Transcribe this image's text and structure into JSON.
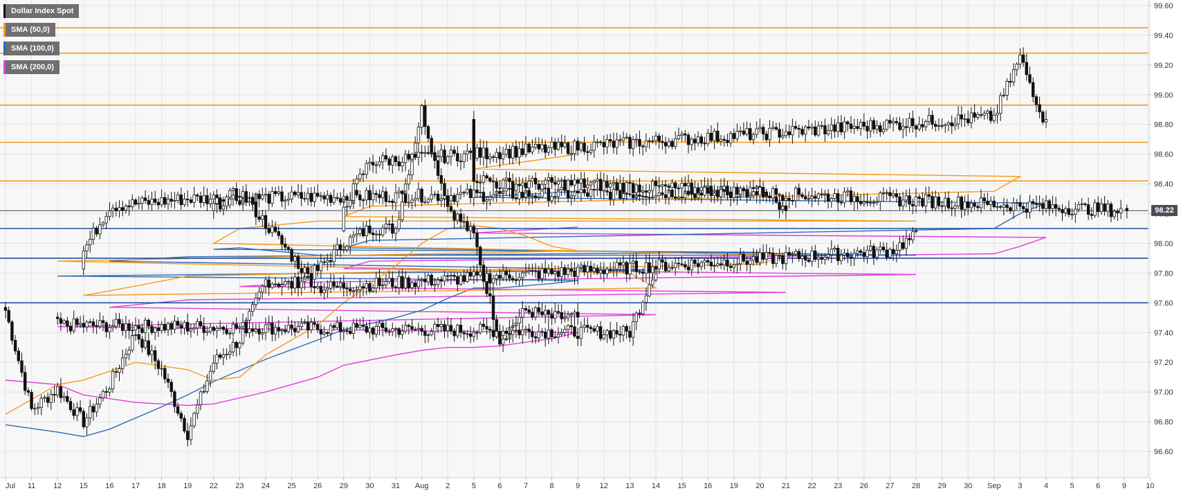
{
  "chart_data": {
    "type": "candlestick",
    "title": "Dollar Index Spot",
    "last_price_label": "98.22",
    "last_price": 98.22,
    "ylim": [
      96.45,
      99.65
    ],
    "y_ticks": [
      "99.60",
      "99.40",
      "99.20",
      "99.00",
      "98.80",
      "98.60",
      "98.40",
      "98.20",
      "98.00",
      "97.80",
      "97.60",
      "97.40",
      "97.20",
      "97.00",
      "96.80",
      "96.60"
    ],
    "x_labels": [
      "Jul",
      "11",
      "12",
      "15",
      "16",
      "17",
      "18",
      "19",
      "22",
      "23",
      "24",
      "25",
      "26",
      "29",
      "30",
      "31",
      "Aug",
      "2",
      "5",
      "6",
      "7",
      "8",
      "9",
      "12",
      "13",
      "14",
      "15",
      "16",
      "19",
      "20",
      "21",
      "22",
      "23",
      "26",
      "27",
      "28",
      "29",
      "30",
      "Sep",
      "3",
      "4",
      "5",
      "6",
      "9",
      "10"
    ],
    "grid": true,
    "legend": [
      {
        "label": "Dollar Index Spot",
        "color": "#111111"
      },
      {
        "label": "SMA (50,0)",
        "color": "#f59a1b"
      },
      {
        "label": "SMA (100,0)",
        "color": "#2e6ab5"
      },
      {
        "label": "SMA (200,0)",
        "color": "#e13ce0"
      }
    ],
    "resistance_levels": [
      99.45,
      99.28,
      98.93,
      98.68,
      98.42
    ],
    "support_levels": [
      98.1,
      97.9,
      97.6
    ],
    "resistance_color": "#f59a1b",
    "support_color": "#1f4fa6",
    "last_price_line_color": "#4a4f57",
    "sma50_color": "#f59a1b",
    "sma100_color": "#2e6ab5",
    "sma200_color": "#e13ce0",
    "candle_anchors": [
      [
        "Jul",
        97.55
      ],
      [
        "11",
        96.88
      ],
      [
        "12",
        97.02
      ],
      [
        "15",
        96.8
      ],
      [
        "16",
        97.05
      ],
      [
        "17",
        97.4
      ],
      [
        "18",
        97.15
      ],
      [
        "19",
        96.72
      ],
      [
        "22",
        97.2
      ],
      [
        "23",
        97.35
      ],
      [
        "24",
        97.75
      ],
      [
        "25",
        97.72
      ],
      [
        "26",
        97.82
      ],
      [
        "29",
        98.0
      ],
      [
        "30",
        98.1
      ],
      [
        "31",
        98.1
      ],
      [
        "Aug",
        98.9
      ],
      [
        "2",
        98.25
      ],
      [
        "5",
        98.05
      ],
      [
        "6",
        97.35
      ],
      [
        "7",
        97.55
      ],
      [
        "8",
        97.5
      ],
      [
        "9",
        97.5
      ],
      [
        "12",
        97.45
      ],
      [
        "13",
        97.4
      ],
      [
        "14",
        97.85
      ],
      [
        "15",
        97.95
      ],
      [
        "16",
        98.25
      ],
      [
        "19",
        98.3
      ],
      [
        "20",
        98.35
      ],
      [
        "21",
        98.2
      ],
      [
        "22",
        98.25
      ],
      [
        "23",
        98.35
      ],
      [
        "26",
        97.7
      ],
      [
        "27",
        97.95
      ],
      [
        "28",
        98.05
      ],
      [
        "29",
        98.25
      ],
      [
        "30",
        98.55
      ],
      [
        "Sep",
        98.85
      ],
      [
        "3",
        99.25
      ],
      [
        "4",
        98.8
      ],
      [
        "5",
        98.45
      ],
      [
        "6",
        98.4
      ],
      [
        "9",
        98.4
      ],
      [
        "9b",
        98.22
      ]
    ],
    "sma50": [
      [
        "Jul",
        96.85
      ],
      [
        "12",
        97.05
      ],
      [
        "15",
        97.08
      ],
      [
        "17",
        97.2
      ],
      [
        "19",
        97.15
      ],
      [
        "22",
        97.08
      ],
      [
        "23",
        97.1
      ],
      [
        "24",
        97.25
      ],
      [
        "26",
        97.45
      ],
      [
        "29",
        97.6
      ],
      [
        "31",
        97.85
      ],
      [
        "Aug",
        98.0
      ],
      [
        "2",
        98.1
      ],
      [
        "5",
        98.12
      ],
      [
        "6",
        98.1
      ],
      [
        "7",
        98.05
      ],
      [
        "8",
        97.98
      ],
      [
        "9",
        97.95
      ],
      [
        "12",
        97.88
      ],
      [
        "13",
        97.8
      ],
      [
        "14",
        97.7
      ],
      [
        "15",
        97.65
      ],
      [
        "16",
        97.68
      ],
      [
        "19",
        97.78
      ],
      [
        "20",
        97.86
      ],
      [
        "21",
        97.92
      ],
      [
        "22",
        98.0
      ],
      [
        "23",
        98.1
      ],
      [
        "26",
        98.15
      ],
      [
        "28",
        98.15
      ],
      [
        "29",
        98.18
      ],
      [
        "30",
        98.25
      ],
      [
        "Sep",
        98.35
      ],
      [
        "3",
        98.45
      ],
      [
        "5",
        98.5
      ],
      [
        "9",
        98.6
      ]
    ],
    "sma100": [
      [
        "Jul",
        96.78
      ],
      [
        "12",
        96.73
      ],
      [
        "15",
        96.7
      ],
      [
        "16",
        96.75
      ],
      [
        "18",
        96.9
      ],
      [
        "19",
        96.98
      ],
      [
        "22",
        97.07
      ],
      [
        "24",
        97.22
      ],
      [
        "26",
        97.35
      ],
      [
        "29",
        97.42
      ],
      [
        "31",
        97.5
      ],
      [
        "Aug",
        97.55
      ],
      [
        "2",
        97.63
      ],
      [
        "5",
        97.7
      ],
      [
        "6",
        97.7
      ],
      [
        "8",
        97.73
      ],
      [
        "9",
        97.75
      ],
      [
        "12",
        97.78
      ],
      [
        "14",
        97.82
      ],
      [
        "16",
        97.88
      ],
      [
        "19",
        97.91
      ],
      [
        "20",
        97.94
      ],
      [
        "22",
        97.96
      ],
      [
        "23",
        97.97
      ],
      [
        "26",
        97.92
      ],
      [
        "28",
        97.92
      ],
      [
        "29",
        97.97
      ],
      [
        "30",
        98.02
      ],
      [
        "Sep",
        98.1
      ],
      [
        "3",
        98.2
      ],
      [
        "4",
        98.27
      ],
      [
        "5",
        98.31
      ],
      [
        "9",
        98.35
      ]
    ],
    "sma200": [
      [
        "Jul",
        97.08
      ],
      [
        "12",
        97.05
      ],
      [
        "15",
        96.98
      ],
      [
        "17",
        96.93
      ],
      [
        "19",
        96.91
      ],
      [
        "22",
        96.92
      ],
      [
        "24",
        97.0
      ],
      [
        "26",
        97.1
      ],
      [
        "29",
        97.18
      ],
      [
        "31",
        97.25
      ],
      [
        "Aug",
        97.28
      ],
      [
        "2",
        97.3
      ],
      [
        "5",
        97.3
      ],
      [
        "6",
        97.31
      ],
      [
        "8",
        97.36
      ],
      [
        "9",
        97.4
      ],
      [
        "12",
        97.44
      ],
      [
        "14",
        97.52
      ],
      [
        "16",
        97.57
      ],
      [
        "19",
        97.62
      ],
      [
        "21",
        97.67
      ],
      [
        "23",
        97.71
      ],
      [
        "26",
        97.74
      ],
      [
        "28",
        97.79
      ],
      [
        "29",
        97.83
      ],
      [
        "30",
        97.88
      ],
      [
        "Sep",
        97.93
      ],
      [
        "3",
        97.98
      ],
      [
        "4",
        98.04
      ],
      [
        "5",
        98.07
      ],
      [
        "9",
        98.11
      ]
    ]
  }
}
